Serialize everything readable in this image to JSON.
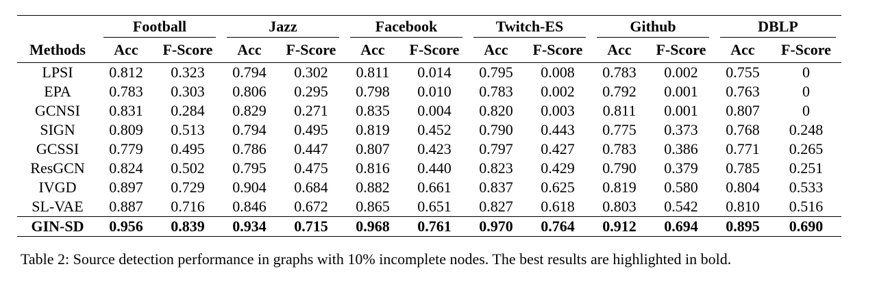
{
  "table": {
    "method_header": "Methods",
    "datasets": [
      "Football",
      "Jazz",
      "Facebook",
      "Twitch-ES",
      "Github",
      "DBLP"
    ],
    "metrics": [
      "Acc",
      "F-Score"
    ],
    "rows": [
      {
        "method": "LPSI",
        "values": [
          "0.812",
          "0.323",
          "0.794",
          "0.302",
          "0.811",
          "0.014",
          "0.795",
          "0.008",
          "0.783",
          "0.002",
          "0.755",
          "0"
        ]
      },
      {
        "method": "EPA",
        "values": [
          "0.783",
          "0.303",
          "0.806",
          "0.295",
          "0.798",
          "0.010",
          "0.783",
          "0.002",
          "0.792",
          "0.001",
          "0.763",
          "0"
        ]
      },
      {
        "method": "GCNSI",
        "values": [
          "0.831",
          "0.284",
          "0.829",
          "0.271",
          "0.835",
          "0.004",
          "0.820",
          "0.003",
          "0.811",
          "0.001",
          "0.807",
          "0"
        ]
      },
      {
        "method": "SIGN",
        "values": [
          "0.809",
          "0.513",
          "0.794",
          "0.495",
          "0.819",
          "0.452",
          "0.790",
          "0.443",
          "0.775",
          "0.373",
          "0.768",
          "0.248"
        ]
      },
      {
        "method": "GCSSI",
        "values": [
          "0.779",
          "0.495",
          "0.786",
          "0.447",
          "0.807",
          "0.423",
          "0.797",
          "0.427",
          "0.783",
          "0.386",
          "0.771",
          "0.265"
        ]
      },
      {
        "method": "ResGCN",
        "values": [
          "0.824",
          "0.502",
          "0.795",
          "0.475",
          "0.816",
          "0.440",
          "0.823",
          "0.429",
          "0.790",
          "0.379",
          "0.785",
          "0.251"
        ]
      },
      {
        "method": "IVGD",
        "values": [
          "0.897",
          "0.729",
          "0.904",
          "0.684",
          "0.882",
          "0.661",
          "0.837",
          "0.625",
          "0.819",
          "0.580",
          "0.804",
          "0.533"
        ]
      },
      {
        "method": "SL-VAE",
        "values": [
          "0.887",
          "0.716",
          "0.846",
          "0.672",
          "0.865",
          "0.651",
          "0.827",
          "0.618",
          "0.803",
          "0.542",
          "0.810",
          "0.516"
        ]
      }
    ],
    "best_row": {
      "method": "GIN-SD",
      "values": [
        "0.956",
        "0.839",
        "0.934",
        "0.715",
        "0.968",
        "0.761",
        "0.970",
        "0.764",
        "0.912",
        "0.694",
        "0.895",
        "0.690"
      ]
    }
  },
  "caption": "Table 2: Source detection performance in graphs with 10% incomplete nodes. The best results are highlighted in bold."
}
